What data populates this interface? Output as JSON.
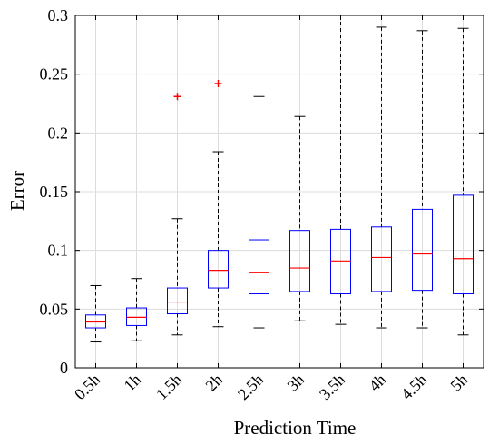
{
  "chart_data": {
    "type": "boxplot",
    "title": "",
    "xlabel": "Prediction Time",
    "ylabel": "Error",
    "ylim": [
      0,
      0.3
    ],
    "yticks": [
      0,
      0.05,
      0.1,
      0.15,
      0.2,
      0.25,
      0.3
    ],
    "ytick_labels": [
      "0",
      "0.05",
      "0.1",
      "0.15",
      "0.2",
      "0.25",
      "0.3"
    ],
    "grid": true,
    "categories": [
      "0.5h",
      "1h",
      "1.5h",
      "2h",
      "2.5h",
      "3h",
      "3.5h",
      "4h",
      "4.5h",
      "5h"
    ],
    "boxes": [
      {
        "category": "0.5h",
        "whisker_low": 0.022,
        "q1": 0.034,
        "median": 0.039,
        "q3": 0.045,
        "whisker_high": 0.07,
        "outliers": []
      },
      {
        "category": "1h",
        "whisker_low": 0.023,
        "q1": 0.036,
        "median": 0.043,
        "q3": 0.051,
        "whisker_high": 0.076,
        "outliers": []
      },
      {
        "category": "1.5h",
        "whisker_low": 0.028,
        "q1": 0.046,
        "median": 0.056,
        "q3": 0.068,
        "whisker_high": 0.127,
        "outliers": [
          0.231
        ]
      },
      {
        "category": "2h",
        "whisker_low": 0.035,
        "q1": 0.068,
        "median": 0.083,
        "q3": 0.1,
        "whisker_high": 0.184,
        "outliers": [
          0.242
        ]
      },
      {
        "category": "2.5h",
        "whisker_low": 0.034,
        "q1": 0.063,
        "median": 0.081,
        "q3": 0.109,
        "whisker_high": 0.231,
        "outliers": []
      },
      {
        "category": "3h",
        "whisker_low": 0.04,
        "q1": 0.065,
        "median": 0.085,
        "q3": 0.117,
        "whisker_high": 0.214,
        "outliers": []
      },
      {
        "category": "3.5h",
        "whisker_low": 0.037,
        "q1": 0.063,
        "median": 0.091,
        "q3": 0.118,
        "whisker_high": 0.3,
        "outliers": []
      },
      {
        "category": "4h",
        "whisker_low": 0.034,
        "q1": 0.065,
        "median": 0.094,
        "q3": 0.12,
        "whisker_high": 0.29,
        "outliers": []
      },
      {
        "category": "4.5h",
        "whisker_low": 0.034,
        "q1": 0.066,
        "median": 0.097,
        "q3": 0.135,
        "whisker_high": 0.287,
        "outliers": []
      },
      {
        "category": "5h",
        "whisker_low": 0.028,
        "q1": 0.063,
        "median": 0.093,
        "q3": 0.147,
        "whisker_high": 0.289,
        "outliers": []
      }
    ],
    "colors": {
      "box": "#0000ff",
      "median": "#ff0000",
      "outlier": "#ff0000",
      "whisker": "#000000",
      "grid": "#dcdcdc",
      "axis": "#000000"
    }
  }
}
